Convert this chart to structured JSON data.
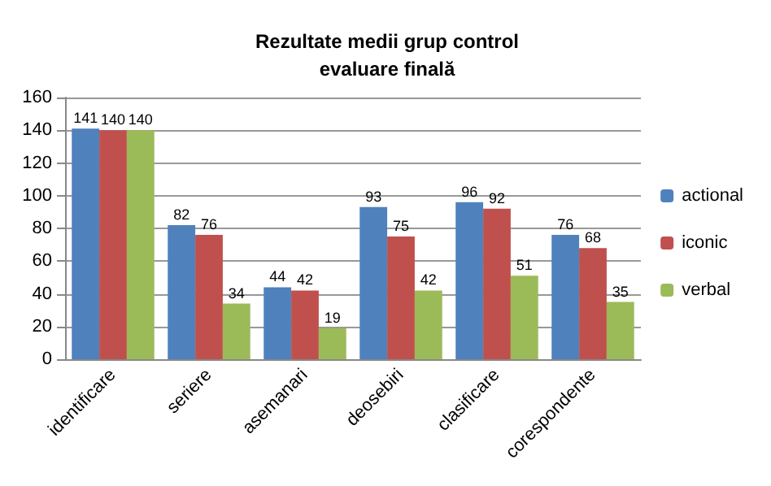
{
  "chart_data": {
    "type": "bar",
    "title": "Rezultate medii grup control\nevaluare finală",
    "categories": [
      "identificare",
      "seriere",
      "asemanari",
      "deosebiri",
      "clasificare",
      "corespondente"
    ],
    "series": [
      {
        "name": "actional",
        "color": "#4f81bd",
        "values": [
          141,
          82,
          44,
          93,
          96,
          76
        ]
      },
      {
        "name": "iconic",
        "color": "#c0504d",
        "values": [
          140,
          76,
          42,
          75,
          92,
          68
        ]
      },
      {
        "name": "verbal",
        "color": "#9bbb59",
        "values": [
          140,
          34,
          19,
          42,
          51,
          35
        ]
      }
    ],
    "ylim": [
      0,
      160
    ],
    "yticks": [
      0,
      20,
      40,
      60,
      80,
      100,
      120,
      140,
      160
    ],
    "grid": "y",
    "legend": "right",
    "data_labels": true
  }
}
